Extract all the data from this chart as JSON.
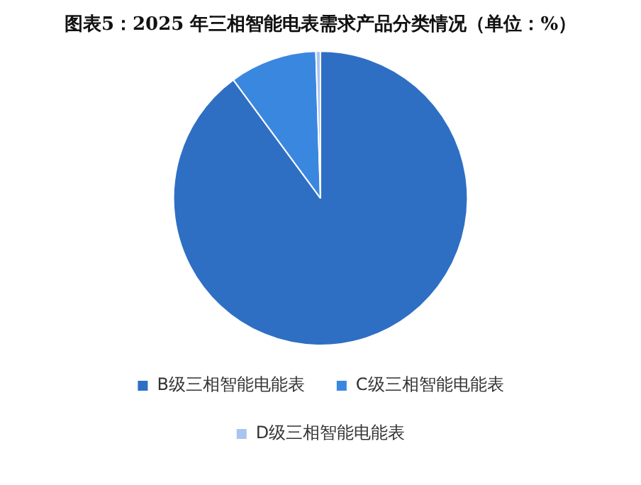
{
  "chart_data": {
    "type": "pie",
    "title": "图表5：2025 年三相智能电表需求产品分类情况（单位：%）",
    "categories": [
      "B级三相智能电能表",
      "C级三相智能电能表",
      "D级三相智能电能表"
    ],
    "values": [
      89.9,
      9.6,
      0.5
    ],
    "colors": [
      "#2e6fc4",
      "#3a87e0",
      "#a9c4f0"
    ],
    "legend": "bottom"
  }
}
